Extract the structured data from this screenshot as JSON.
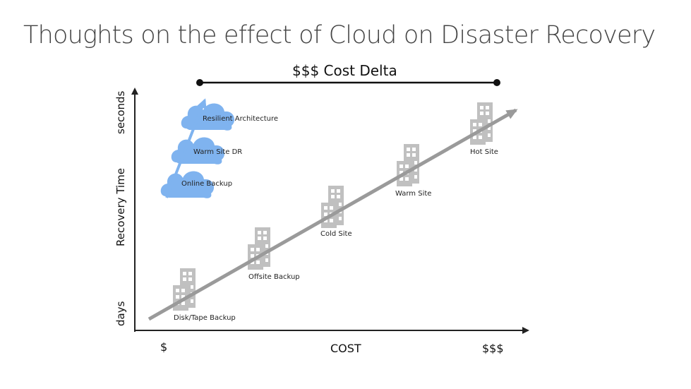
{
  "title": "Thoughts on the effect of Cloud on Disaster Recovery",
  "cost_delta_label": "$$$ Cost Delta",
  "y_axis": {
    "label": "Recovery Time",
    "top": "seconds",
    "bottom": "days"
  },
  "x_axis": {
    "label": "COST",
    "left": "$",
    "right": "$$$"
  },
  "cloud_tiers": [
    "Resilient Architecture",
    "Warm  Site DR",
    "Online Backup"
  ],
  "traditional_tiers": [
    "Disk/Tape Backup",
    "Offsite Backup",
    "Cold Site",
    "Warm  Site",
    "Hot Site"
  ],
  "colors": {
    "cloud": "#7fb3ef",
    "arrow": "#9a9a9a",
    "building": "#c0c0c0",
    "axis": "#222222"
  },
  "icons": [
    "cloud-icon",
    "building-icon"
  ]
}
